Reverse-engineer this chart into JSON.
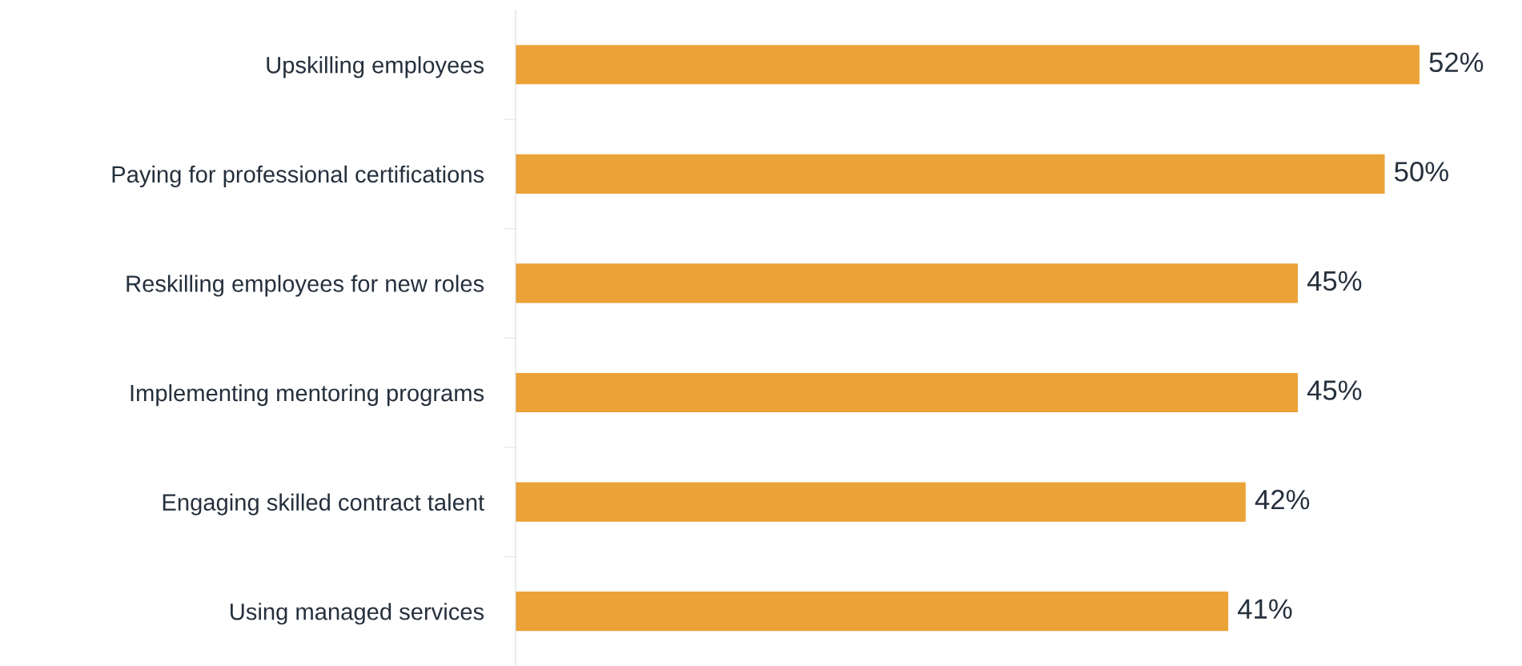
{
  "chart_data": {
    "type": "bar",
    "orientation": "horizontal",
    "categories": [
      "Upskilling employees",
      "Paying for professional certifications",
      "Reskilling employees for new roles",
      "Implementing mentoring programs",
      "Engaging skilled contract talent",
      "Using managed services"
    ],
    "values": [
      52,
      50,
      45,
      45,
      42,
      41
    ],
    "value_labels": [
      "52%",
      "50%",
      "45%",
      "45%",
      "42%",
      "41%"
    ],
    "color": "#eba237",
    "grid": false,
    "legend": false,
    "tick_labels": "y"
  }
}
